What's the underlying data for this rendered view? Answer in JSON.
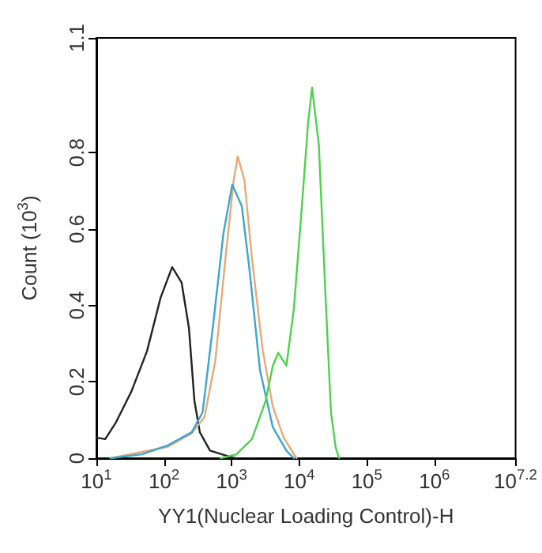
{
  "chart_data": {
    "type": "line",
    "xlabel": "YY1(Nuclear Loading Control)-H",
    "ylabel": "Count (10$^{3}$)",
    "log": "x",
    "marker": "none",
    "line_style": "solid",
    "xlim": [
      10,
      15848932
    ],
    "xticks": [
      {
        "value": 10,
        "label": "10$^{1}$"
      },
      {
        "value": 100,
        "label": "10$^{2}$"
      },
      {
        "value": 1000,
        "label": "10$^{3}$"
      },
      {
        "value": 10000,
        "label": "10$^{4}$"
      },
      {
        "value": 100000,
        "label": "10$^{5}$"
      },
      {
        "value": 1000000,
        "label": "10$^{6}$"
      },
      {
        "value": 15848932,
        "label": "10$^{7.2}$"
      }
    ],
    "ylim": [
      0,
      1.1
    ],
    "yticks": [
      0,
      0.2,
      0.4,
      0.6,
      0.8,
      1.1
    ],
    "series": [
      {
        "color": "#222222",
        "x": [
          10,
          13.5,
          19.5,
          33,
          56,
          89,
          132,
          182,
          234,
          282,
          339,
          479,
          977,
          1175
        ],
        "values": [
          0.054,
          0.05,
          0.094,
          0.175,
          0.28,
          0.42,
          0.5,
          0.46,
          0.34,
          0.15,
          0.068,
          0.02,
          0.003,
          0
        ]
      },
      {
        "color": "#e8a878",
        "x": [
          16.2,
          115,
          257,
          398,
          575,
          813,
          1072,
          1230,
          1549,
          1995,
          2884,
          4070,
          5890,
          9120
        ],
        "values": [
          0,
          0.03,
          0.065,
          0.108,
          0.256,
          0.525,
          0.727,
          0.79,
          0.727,
          0.525,
          0.283,
          0.135,
          0.054,
          0
        ]
      },
      {
        "color": "#3aa6d0",
        "x": [
          16.2,
          47,
          115,
          257,
          372,
          525,
          759,
          1023,
          1413,
          1820,
          2630,
          4070,
          6460,
          8320
        ],
        "values": [
          0,
          0.01,
          0.034,
          0.068,
          0.12,
          0.34,
          0.59,
          0.716,
          0.66,
          0.5,
          0.23,
          0.081,
          0.02,
          0
        ]
      },
      {
        "color": "#4dd24d",
        "x": [
          692,
          1175,
          1995,
          3162,
          4070,
          4900,
          6460,
          8320,
          10960,
          13490,
          15490,
          19500,
          24550,
          29510,
          34670,
          38900
        ],
        "values": [
          0,
          0.01,
          0.05,
          0.148,
          0.242,
          0.276,
          0.242,
          0.39,
          0.66,
          0.876,
          0.97,
          0.82,
          0.42,
          0.12,
          0.027,
          0
        ]
      }
    ]
  }
}
